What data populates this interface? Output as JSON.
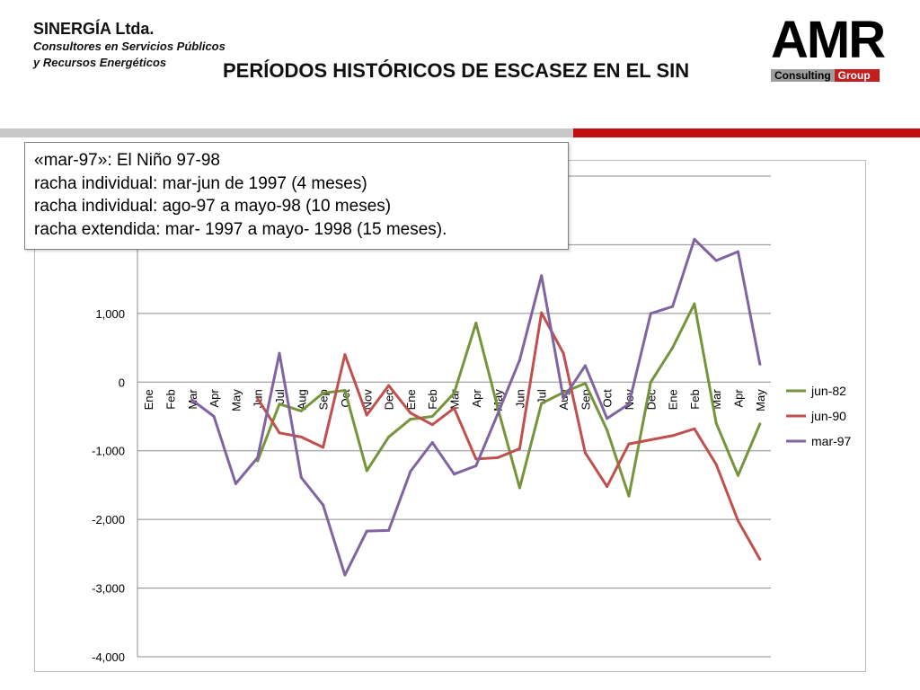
{
  "header": {
    "company_name": "SINERGÍA Ltda.",
    "company_line1": "Consultores en Servicios Públicos",
    "company_line2": "y Recursos Energéticos",
    "title": "PERÍODOS HISTÓRICOS DE ESCASEZ EN EL SIN",
    "logo_text": "AMR",
    "logo_sub1": "Consulting",
    "logo_sub2": "Group"
  },
  "annotation": {
    "line1": "«mar-97»: El Niño 97-98",
    "line2": "racha individual: mar-jun de 1997 (4 meses)",
    "line3": "racha individual: ago-97 a mayo-98 (10 meses)",
    "line4": "racha extendida: mar- 1997 a mayo- 1998 (15 meses)."
  },
  "chart_data": {
    "type": "line",
    "ylim": [
      -4000,
      3000
    ],
    "yticks": [
      -4000,
      -3000,
      -2000,
      -1000,
      0,
      1000
    ],
    "ytick_labels": [
      "-4,000",
      "-3,000",
      "-2,000",
      "-1,000",
      "0",
      "1,000"
    ],
    "categories": [
      "Ene",
      "Feb",
      "Mar",
      "Apr",
      "May",
      "Jun",
      "Jul",
      "Aug",
      "Sep",
      "Oct",
      "Nov",
      "Dec",
      "Ene",
      "Feb",
      "Mar",
      "Apr",
      "May",
      "Jun",
      "Jul",
      "Aug",
      "Sep",
      "Oct",
      "Nov",
      "Dec",
      "Ene",
      "Feb",
      "Mar",
      "Apr",
      "May"
    ],
    "grid": true,
    "legend_position": "right",
    "series": [
      {
        "name": "jun-82",
        "color": "#77933c",
        "values": [
          null,
          null,
          null,
          null,
          null,
          -1150,
          -320,
          -420,
          -160,
          -120,
          -1290,
          -800,
          -540,
          -500,
          -160,
          860,
          -380,
          -1540,
          -310,
          -150,
          -20,
          -700,
          -1660,
          0,
          500,
          1140,
          -600,
          -1360,
          -610
        ]
      },
      {
        "name": "jun-90",
        "color": "#c0504d",
        "values": [
          null,
          null,
          null,
          null,
          null,
          -240,
          -740,
          -800,
          -950,
          400,
          -480,
          -50,
          -450,
          -620,
          -380,
          -1120,
          -1100,
          -970,
          1010,
          420,
          -1030,
          -1520,
          -900,
          -840,
          -780,
          -680,
          -1200,
          -2020,
          -2580
        ]
      },
      {
        "name": "mar-97",
        "color": "#8064a2",
        "values": [
          null,
          null,
          -260,
          -500,
          -1480,
          -1100,
          420,
          -1390,
          -1790,
          -2810,
          -2170,
          -2160,
          -1300,
          -880,
          -1340,
          -1220,
          -460,
          320,
          1550,
          -240,
          240,
          -530,
          -320,
          1000,
          1100,
          2080,
          1770,
          1900,
          260
        ]
      }
    ]
  }
}
